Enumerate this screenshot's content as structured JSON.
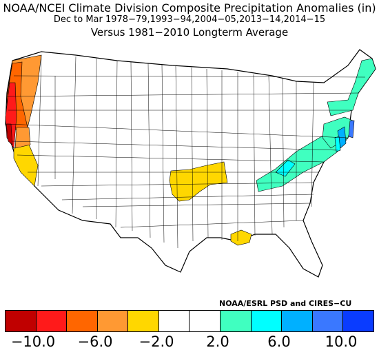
{
  "title": "NOAA/NCEI Climate Division Composite Precipitation Anomalies (in)",
  "subtitle": "Dec to Mar  1978−79,1993−94,2004−05,2013−14,2014−15",
  "baseline": "Versus 1981−2010 Longterm Average",
  "credit": "NOAA/ESRL PSD and CIRES−CU",
  "colorbar": {
    "colors": [
      "#c00000",
      "#ff1a1a",
      "#ff6600",
      "#ff9933",
      "#ffd700",
      "#ffffff",
      "#ffffff",
      "#40ffc0",
      "#00ffff",
      "#00b0ff",
      "#3a78ff",
      "#0a3cff"
    ],
    "tick_labels": [
      "−10.0",
      "−6.0",
      "−2.0",
      "2.0",
      "6.0",
      "10.0"
    ]
  },
  "anomaly_regions": [
    {
      "name": "pacific-coast",
      "category": "strong-dry"
    },
    {
      "name": "southern-plains",
      "category": "weak-dry"
    },
    {
      "name": "lower-mississippi",
      "category": "weak-dry"
    },
    {
      "name": "ohio-valley-appalachians",
      "category": "weak-wet"
    },
    {
      "name": "mid-atlantic-coast",
      "category": "moderate-wet"
    },
    {
      "name": "new-england",
      "category": "weak-wet"
    }
  ]
}
